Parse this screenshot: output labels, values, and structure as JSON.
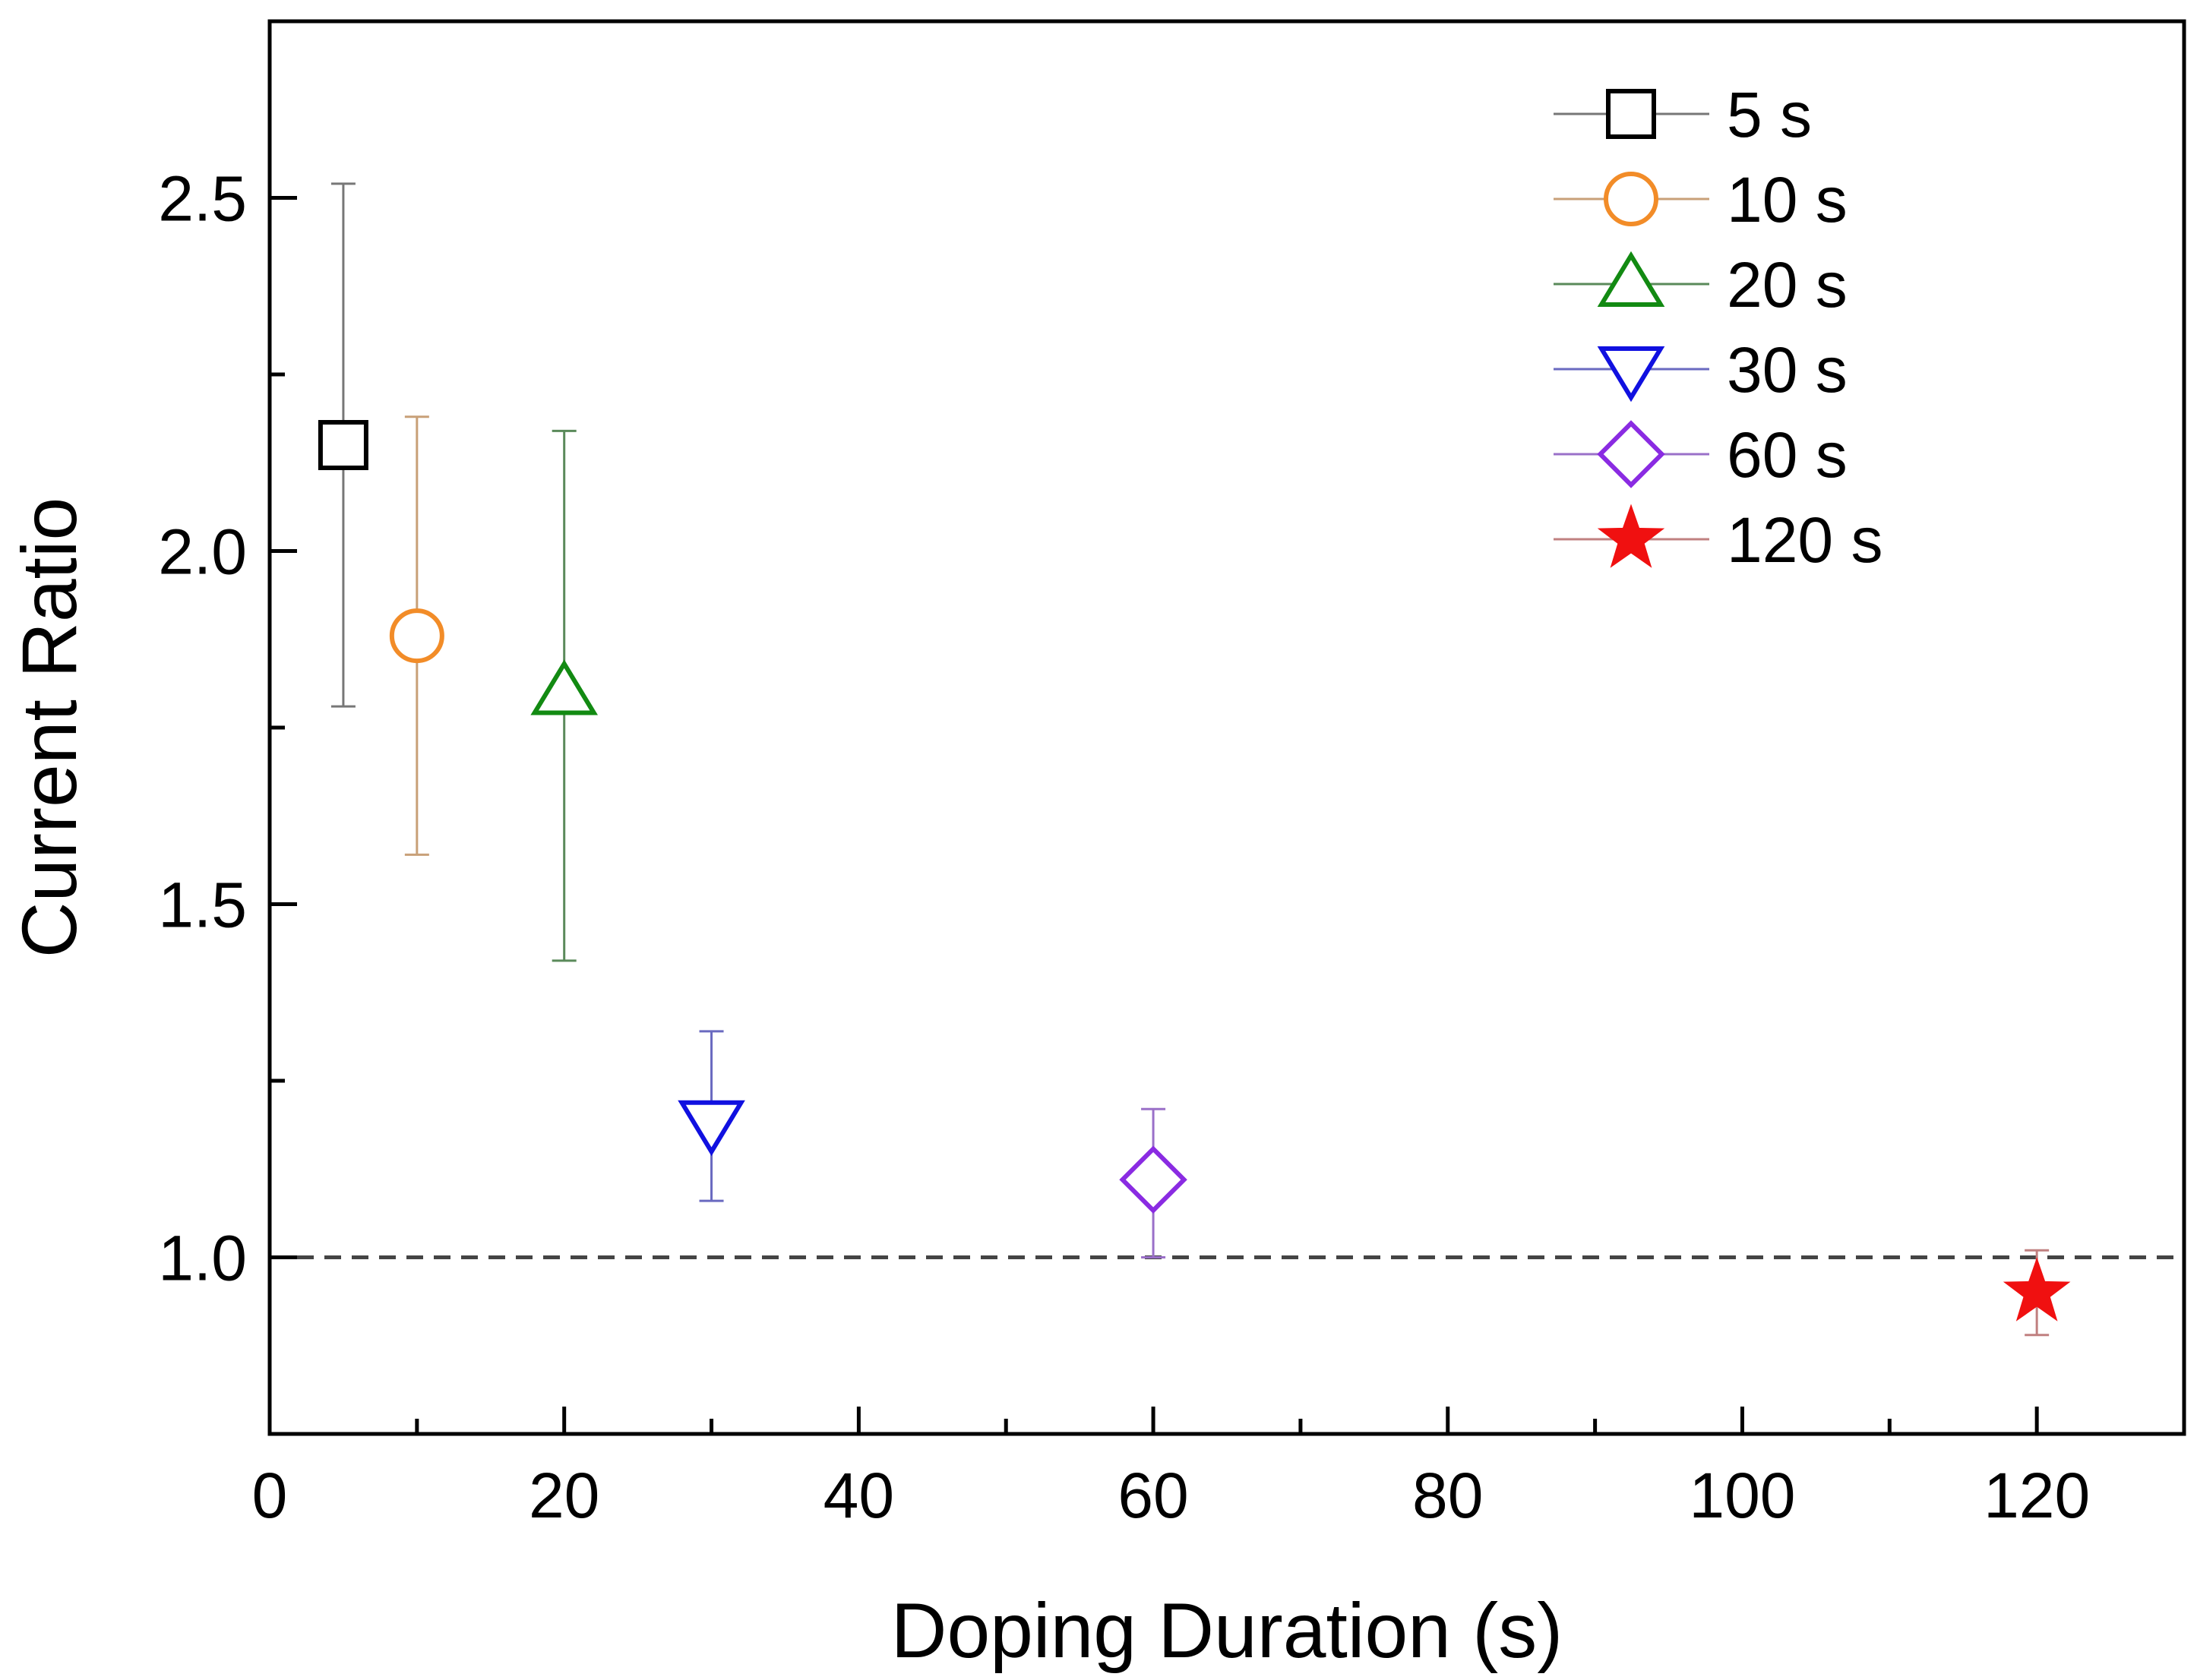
{
  "chart_data": {
    "type": "scatter",
    "title": "",
    "xlabel": "Doping Duration (s)",
    "ylabel": "Current Ratio",
    "xlim": [
      0,
      130
    ],
    "ylim": [
      0.75,
      2.75
    ],
    "xticks": [
      0,
      20,
      40,
      60,
      80,
      100,
      120
    ],
    "xtick_labels": [
      "0",
      "20",
      "40",
      "60",
      "80",
      "100",
      "120"
    ],
    "yticks": [
      1.0,
      1.5,
      2.0,
      2.5
    ],
    "ytick_labels": [
      "1.0",
      "1.5",
      "2.0",
      "2.5"
    ],
    "grid": false,
    "legend_position": "top-right",
    "reference_line": {
      "y": 1.0,
      "style": "dashed",
      "color": "#444444"
    },
    "series": [
      {
        "name": "5 s",
        "x": 5,
        "y": 2.15,
        "err_low": 1.78,
        "err_high": 2.52,
        "marker": "square",
        "color": "#000000",
        "err_color": "#777777",
        "filled": false
      },
      {
        "name": "10 s",
        "x": 10,
        "y": 1.88,
        "err_low": 1.57,
        "err_high": 2.19,
        "marker": "circle",
        "color": "#F28C28",
        "err_color": "#C8A078",
        "filled": false
      },
      {
        "name": "20 s",
        "x": 20,
        "y": 1.8,
        "err_low": 1.42,
        "err_high": 2.17,
        "marker": "triangle-up",
        "color": "#128A12",
        "err_color": "#5A8A5A",
        "filled": false
      },
      {
        "name": "30 s",
        "x": 30,
        "y": 1.19,
        "err_low": 1.08,
        "err_high": 1.32,
        "marker": "triangle-down",
        "color": "#1010E0",
        "err_color": "#6A6AC0",
        "filled": false
      },
      {
        "name": "60 s",
        "x": 60,
        "y": 1.11,
        "err_low": 1.0,
        "err_high": 1.21,
        "marker": "diamond",
        "color": "#8A2BE2",
        "err_color": "#9A70C8",
        "filled": false
      },
      {
        "name": "120 s",
        "x": 120,
        "y": 0.95,
        "err_low": 0.89,
        "err_high": 1.01,
        "marker": "star",
        "color": "#F01010",
        "err_color": "#C08080",
        "filled": true
      }
    ]
  }
}
